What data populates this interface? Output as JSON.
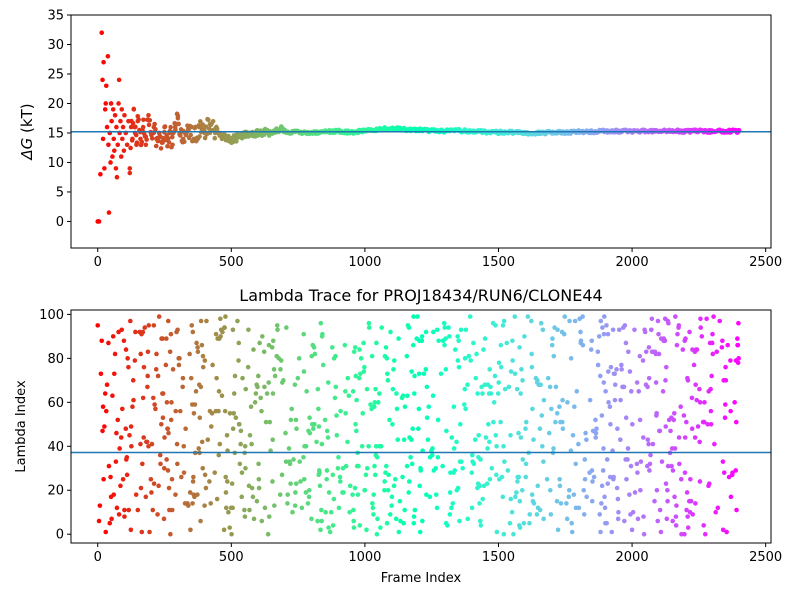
{
  "chart_data": [
    {
      "type": "scatter",
      "title": "",
      "xlabel": "",
      "ylabel_symbol": "ΔG",
      "ylabel_unit": " (kT)",
      "xlim": [
        -100,
        2520
      ],
      "ylim": [
        -4.5,
        35
      ],
      "xticks": [
        0,
        500,
        1000,
        1500,
        2000,
        2500
      ],
      "yticks": [
        0,
        5,
        10,
        15,
        20,
        25,
        30,
        35
      ],
      "reference_line": 15.2,
      "grid": false,
      "colormap": "rainbow",
      "color_by": "frame index",
      "n_frames": 2400,
      "series": [
        {
          "points": [
            [
              0,
              0
            ],
            [
              5,
              0
            ],
            [
              10,
              8
            ],
            [
              15,
              32
            ],
            [
              18,
              24
            ],
            [
              20,
              14
            ],
            [
              22,
              27
            ],
            [
              25,
              9
            ],
            [
              28,
              19
            ],
            [
              30,
              20
            ],
            [
              32,
              23
            ],
            [
              35,
              16
            ],
            [
              38,
              28
            ],
            [
              40,
              13
            ],
            [
              42,
              1.5
            ],
            [
              45,
              15
            ],
            [
              48,
              10
            ],
            [
              50,
              20
            ],
            [
              52,
              17
            ],
            [
              55,
              11
            ],
            [
              58,
              19
            ],
            [
              60,
              14
            ],
            [
              62,
              12
            ],
            [
              65,
              18
            ],
            [
              68,
              9
            ],
            [
              70,
              16
            ],
            [
              72,
              7.5
            ],
            [
              75,
              13
            ],
            [
              78,
              20
            ],
            [
              80,
              24
            ],
            [
              82,
              15
            ],
            [
              85,
              17
            ],
            [
              88,
              11
            ],
            [
              90,
              19
            ],
            [
              92,
              14
            ],
            [
              95,
              16
            ],
            [
              98,
              12
            ],
            [
              100,
              18
            ],
            [
              105,
              15
            ],
            [
              110,
              13
            ],
            [
              115,
              17
            ],
            [
              120,
              9
            ],
            [
              125,
              16
            ],
            [
              130,
              14
            ],
            [
              135,
              19
            ],
            [
              140,
              15
            ],
            [
              145,
              13
            ],
            [
              150,
              17
            ],
            [
              160,
              14
            ],
            [
              170,
              16
            ],
            [
              180,
              13
            ],
            [
              190,
              18
            ],
            [
              200,
              15
            ],
            [
              210,
              16
            ],
            [
              220,
              14
            ],
            [
              230,
              15
            ],
            [
              240,
              13.5
            ],
            [
              250,
              16
            ],
            [
              260,
              14
            ],
            [
              270,
              15
            ],
            [
              280,
              13
            ],
            [
              290,
              16
            ],
            [
              300,
              17.5
            ],
            [
              310,
              15
            ],
            [
              320,
              14
            ],
            [
              340,
              15.5
            ],
            [
              360,
              14
            ],
            [
              380,
              16
            ],
            [
              400,
              15
            ],
            [
              420,
              16.5
            ],
            [
              440,
              15
            ],
            [
              460,
              14.5
            ],
            [
              480,
              14
            ],
            [
              500,
              13.8
            ],
            [
              520,
              14.2
            ],
            [
              540,
              14.5
            ],
            [
              560,
              15
            ],
            [
              580,
              14.8
            ],
            [
              600,
              14.9
            ],
            [
              620,
              15.1
            ],
            [
              640,
              15
            ],
            [
              660,
              15.4
            ],
            [
              680,
              15.6
            ],
            [
              700,
              15.3
            ],
            [
              720,
              15
            ],
            [
              740,
              15.2
            ],
            [
              760,
              15
            ],
            [
              780,
              15.1
            ],
            [
              800,
              15
            ],
            [
              850,
              15.2
            ],
            [
              900,
              15.3
            ],
            [
              950,
              15.1
            ],
            [
              1000,
              15.4
            ],
            [
              1050,
              15.6
            ],
            [
              1100,
              15.8
            ],
            [
              1150,
              15.6
            ],
            [
              1200,
              15.5
            ],
            [
              1250,
              15.4
            ],
            [
              1300,
              15.3
            ],
            [
              1350,
              15.4
            ],
            [
              1400,
              15.3
            ],
            [
              1450,
              15.2
            ],
            [
              1500,
              15.1
            ],
            [
              1550,
              15.1
            ],
            [
              1600,
              15
            ],
            [
              1650,
              15
            ],
            [
              1700,
              15.1
            ],
            [
              1750,
              15.1
            ],
            [
              1800,
              15.2
            ],
            [
              1850,
              15.2
            ],
            [
              1900,
              15.3
            ],
            [
              1950,
              15.3
            ],
            [
              2000,
              15.3
            ],
            [
              2050,
              15.3
            ],
            [
              2100,
              15.3
            ],
            [
              2150,
              15.3
            ],
            [
              2200,
              15.3
            ],
            [
              2250,
              15.3
            ],
            [
              2300,
              15.3
            ],
            [
              2350,
              15.3
            ],
            [
              2400,
              15.3
            ]
          ]
        }
      ]
    },
    {
      "type": "scatter",
      "title": "Lambda Trace for PROJ18434/RUN6/CLONE44",
      "xlabel": "Frame Index",
      "ylabel": "Lambda Index",
      "xlim": [
        -100,
        2520
      ],
      "ylim": [
        -4,
        102
      ],
      "xticks": [
        0,
        500,
        1000,
        1500,
        2000,
        2500
      ],
      "yticks": [
        0,
        20,
        40,
        60,
        80,
        100
      ],
      "reference_line": 37.2,
      "grid": false,
      "colormap": "rainbow",
      "color_by": "frame index",
      "n_frames": 2400,
      "lambda_range": [
        0,
        99
      ],
      "series": [
        {
          "points": [
            [
              0,
              95
            ],
            [
              5,
              6
            ],
            [
              8,
              13
            ],
            [
              12,
              73
            ],
            [
              15,
              88
            ],
            [
              18,
              47
            ],
            [
              20,
              58
            ],
            [
              22,
              25
            ],
            [
              25,
              49
            ],
            [
              28,
              64
            ],
            [
              30,
              1
            ],
            [
              32,
              56
            ],
            [
              35,
              68
            ],
            [
              40,
              87
            ],
            [
              42,
              31
            ],
            [
              45,
              5
            ],
            [
              48,
              26
            ],
            [
              50,
              17
            ],
            [
              52,
              7
            ],
            [
              55,
              63
            ],
            [
              58,
              90
            ],
            [
              60,
              18
            ],
            [
              62,
              73
            ],
            [
              65,
              82
            ],
            [
              68,
              33
            ],
            [
              70,
              46
            ],
            [
              72,
              12
            ],
            [
              75,
              52
            ],
            [
              78,
              92
            ],
            [
              80,
              9
            ],
            [
              82,
              39
            ],
            [
              85,
              22
            ],
            [
              88,
              44
            ],
            [
              90,
              93
            ],
            [
              92,
              57
            ],
            [
              95,
              25
            ],
            [
              98,
              88
            ],
            [
              100,
              11
            ]
          ]
        }
      ]
    }
  ]
}
